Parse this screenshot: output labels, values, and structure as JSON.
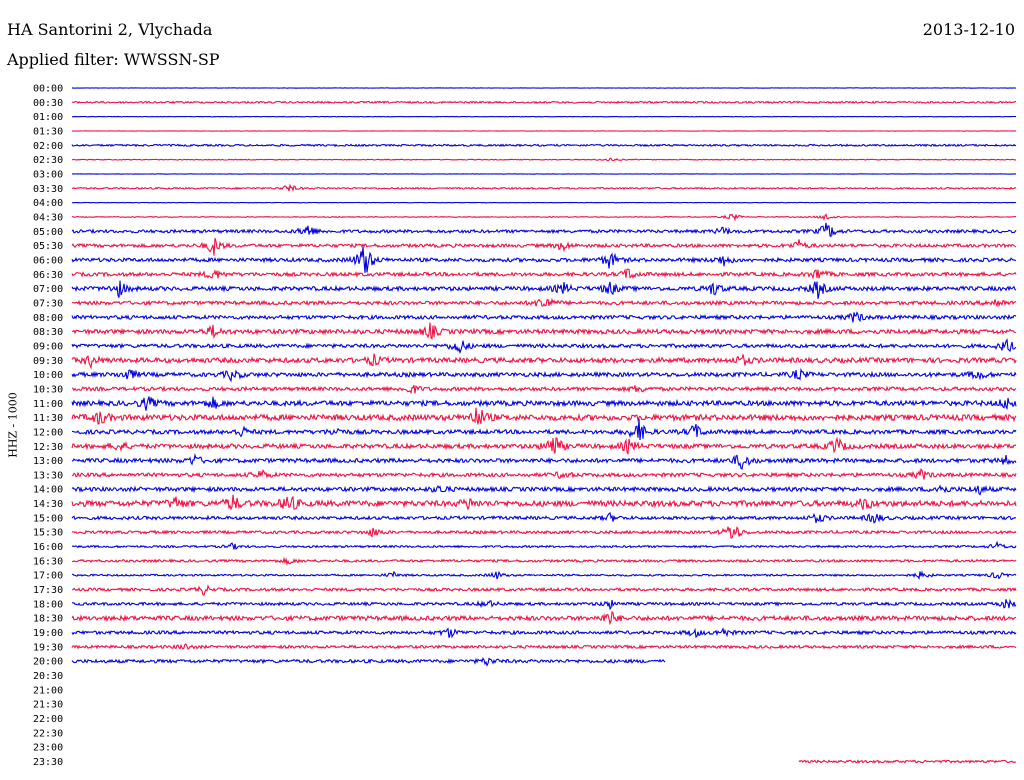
{
  "header": {
    "station": "HA Santorini 2, Vlychada",
    "date": "2013-12-10",
    "filter": "Applied filter: WWSSN-SP"
  },
  "colors": {
    "blue_trace": "#0000dd",
    "red_trace": "#ee1144",
    "background": "#ffffff"
  },
  "chart_data": {
    "type": "line",
    "title": "HA Santorini 2, Vlychada",
    "subtitle": "Applied filter: WWSSN-SP",
    "ylabel": "HHZ - 1000",
    "xlabel": "",
    "legend": "none",
    "grid": false,
    "rows": [
      {
        "time": "00:00",
        "color": "blue",
        "noise": 0.2,
        "end": 1.0,
        "events": []
      },
      {
        "time": "00:30",
        "color": "red",
        "noise": 0.9,
        "end": 1.0,
        "events": []
      },
      {
        "time": "01:00",
        "color": "blue",
        "noise": 0.2,
        "end": 1.0,
        "events": []
      },
      {
        "time": "01:30",
        "color": "red",
        "noise": 0.2,
        "end": 1.0,
        "events": []
      },
      {
        "time": "02:00",
        "color": "blue",
        "noise": 0.9,
        "end": 1.0,
        "events": []
      },
      {
        "time": "02:30",
        "color": "red",
        "noise": 0.4,
        "end": 1.0,
        "events": [
          {
            "t": 0.57,
            "a": 2
          }
        ]
      },
      {
        "time": "03:00",
        "color": "blue",
        "noise": 0.2,
        "end": 1.0,
        "events": []
      },
      {
        "time": "03:30",
        "color": "red",
        "noise": 0.8,
        "end": 1.0,
        "events": [
          {
            "t": 0.23,
            "a": 4
          }
        ]
      },
      {
        "time": "04:00",
        "color": "blue",
        "noise": 0.2,
        "end": 1.0,
        "events": []
      },
      {
        "time": "04:30",
        "color": "red",
        "noise": 0.4,
        "end": 1.0,
        "events": [
          {
            "t": 0.7,
            "a": 4
          },
          {
            "t": 0.8,
            "a": 4
          }
        ]
      },
      {
        "time": "05:00",
        "color": "blue",
        "noise": 1.5,
        "end": 1.0,
        "events": [
          {
            "t": 0.25,
            "a": 8
          },
          {
            "t": 0.69,
            "a": 4
          },
          {
            "t": 0.8,
            "a": 10
          }
        ]
      },
      {
        "time": "05:30",
        "color": "red",
        "noise": 1.6,
        "end": 1.0,
        "events": [
          {
            "t": 0.15,
            "a": 10
          },
          {
            "t": 0.52,
            "a": 5
          },
          {
            "t": 0.77,
            "a": 5
          }
        ]
      },
      {
        "time": "06:00",
        "color": "blue",
        "noise": 1.8,
        "end": 1.0,
        "events": [
          {
            "t": 0.31,
            "a": 20
          },
          {
            "t": 0.57,
            "a": 9
          },
          {
            "t": 0.69,
            "a": 6
          }
        ]
      },
      {
        "time": "06:30",
        "color": "red",
        "noise": 1.8,
        "end": 1.0,
        "events": [
          {
            "t": 0.15,
            "a": 6
          },
          {
            "t": 0.59,
            "a": 6
          },
          {
            "t": 0.79,
            "a": 6
          }
        ]
      },
      {
        "time": "07:00",
        "color": "blue",
        "noise": 2.0,
        "end": 1.0,
        "events": [
          {
            "t": 0.05,
            "a": 8
          },
          {
            "t": 0.52,
            "a": 6
          },
          {
            "t": 0.57,
            "a": 7
          },
          {
            "t": 0.68,
            "a": 7
          },
          {
            "t": 0.79,
            "a": 9
          }
        ]
      },
      {
        "time": "07:30",
        "color": "red",
        "noise": 1.8,
        "end": 1.0,
        "events": [
          {
            "t": 0.5,
            "a": 9
          },
          {
            "t": 0.98,
            "a": 5
          }
        ]
      },
      {
        "time": "08:00",
        "color": "blue",
        "noise": 1.8,
        "end": 1.0,
        "events": [
          {
            "t": 0.83,
            "a": 6
          }
        ]
      },
      {
        "time": "08:30",
        "color": "red",
        "noise": 2.2,
        "end": 1.0,
        "events": [
          {
            "t": 0.15,
            "a": 6
          },
          {
            "t": 0.38,
            "a": 8
          }
        ]
      },
      {
        "time": "09:00",
        "color": "blue",
        "noise": 1.8,
        "end": 1.0,
        "events": [
          {
            "t": 0.41,
            "a": 9
          },
          {
            "t": 0.99,
            "a": 7
          }
        ]
      },
      {
        "time": "09:30",
        "color": "red",
        "noise": 2.4,
        "end": 1.0,
        "events": [
          {
            "t": 0.02,
            "a": 6
          },
          {
            "t": 0.32,
            "a": 5
          },
          {
            "t": 0.71,
            "a": 5
          }
        ]
      },
      {
        "time": "10:00",
        "color": "blue",
        "noise": 2.0,
        "end": 1.0,
        "events": [
          {
            "t": 0.06,
            "a": 6
          },
          {
            "t": 0.17,
            "a": 6
          },
          {
            "t": 0.77,
            "a": 5
          },
          {
            "t": 0.96,
            "a": 5
          }
        ]
      },
      {
        "time": "10:30",
        "color": "red",
        "noise": 1.8,
        "end": 1.0,
        "events": [
          {
            "t": 0.36,
            "a": 5
          },
          {
            "t": 0.6,
            "a": 4
          }
        ]
      },
      {
        "time": "11:00",
        "color": "blue",
        "noise": 2.4,
        "end": 1.0,
        "events": [
          {
            "t": 0.08,
            "a": 7
          },
          {
            "t": 0.15,
            "a": 5
          },
          {
            "t": 0.99,
            "a": 6
          }
        ]
      },
      {
        "time": "11:30",
        "color": "red",
        "noise": 2.8,
        "end": 1.0,
        "events": [
          {
            "t": 0.03,
            "a": 7
          },
          {
            "t": 0.43,
            "a": 12
          }
        ]
      },
      {
        "time": "12:00",
        "color": "blue",
        "noise": 2.0,
        "end": 1.0,
        "events": [
          {
            "t": 0.18,
            "a": 5
          },
          {
            "t": 0.28,
            "a": 4
          },
          {
            "t": 0.6,
            "a": 13
          },
          {
            "t": 0.66,
            "a": 8
          }
        ]
      },
      {
        "time": "12:30",
        "color": "red",
        "noise": 2.2,
        "end": 1.0,
        "events": [
          {
            "t": 0.05,
            "a": 5
          },
          {
            "t": 0.51,
            "a": 14
          },
          {
            "t": 0.59,
            "a": 7
          },
          {
            "t": 0.81,
            "a": 9
          }
        ]
      },
      {
        "time": "13:00",
        "color": "blue",
        "noise": 2.0,
        "end": 1.0,
        "events": [
          {
            "t": 0.13,
            "a": 5
          },
          {
            "t": 0.71,
            "a": 10
          },
          {
            "t": 0.99,
            "a": 4
          }
        ]
      },
      {
        "time": "13:30",
        "color": "red",
        "noise": 1.8,
        "end": 1.0,
        "events": [
          {
            "t": 0.2,
            "a": 5
          },
          {
            "t": 0.52,
            "a": 4
          },
          {
            "t": 0.9,
            "a": 5
          }
        ]
      },
      {
        "time": "14:00",
        "color": "blue",
        "noise": 2.0,
        "end": 1.0,
        "events": [
          {
            "t": 0.39,
            "a": 4
          },
          {
            "t": 0.92,
            "a": 5
          },
          {
            "t": 0.96,
            "a": 5
          }
        ]
      },
      {
        "time": "14:30",
        "color": "red",
        "noise": 2.8,
        "end": 1.0,
        "events": [
          {
            "t": 0.11,
            "a": 6
          },
          {
            "t": 0.17,
            "a": 8
          },
          {
            "t": 0.23,
            "a": 10
          },
          {
            "t": 0.42,
            "a": 5
          },
          {
            "t": 0.84,
            "a": 6
          }
        ]
      },
      {
        "time": "15:00",
        "color": "blue",
        "noise": 1.6,
        "end": 1.0,
        "events": [
          {
            "t": 0.57,
            "a": 4
          },
          {
            "t": 0.79,
            "a": 5
          },
          {
            "t": 0.85,
            "a": 6
          }
        ]
      },
      {
        "time": "15:30",
        "color": "red",
        "noise": 1.4,
        "end": 1.0,
        "events": [
          {
            "t": 0.32,
            "a": 5
          },
          {
            "t": 0.7,
            "a": 12
          }
        ]
      },
      {
        "time": "16:00",
        "color": "blue",
        "noise": 1.0,
        "end": 1.0,
        "events": [
          {
            "t": 0.17,
            "a": 3
          },
          {
            "t": 0.98,
            "a": 4
          }
        ]
      },
      {
        "time": "16:30",
        "color": "red",
        "noise": 1.2,
        "end": 1.0,
        "events": [
          {
            "t": 0.23,
            "a": 3
          }
        ]
      },
      {
        "time": "17:00",
        "color": "blue",
        "noise": 0.9,
        "end": 1.0,
        "events": [
          {
            "t": 0.34,
            "a": 3
          },
          {
            "t": 0.45,
            "a": 4
          },
          {
            "t": 0.9,
            "a": 4
          },
          {
            "t": 0.98,
            "a": 4
          }
        ]
      },
      {
        "time": "17:30",
        "color": "red",
        "noise": 1.4,
        "end": 1.0,
        "events": [
          {
            "t": 0.14,
            "a": 5
          }
        ]
      },
      {
        "time": "18:00",
        "color": "blue",
        "noise": 1.4,
        "end": 1.0,
        "events": [
          {
            "t": 0.44,
            "a": 4
          },
          {
            "t": 0.57,
            "a": 4
          },
          {
            "t": 0.99,
            "a": 5
          }
        ]
      },
      {
        "time": "18:30",
        "color": "red",
        "noise": 2.2,
        "end": 1.0,
        "events": [
          {
            "t": 0.57,
            "a": 7
          }
        ]
      },
      {
        "time": "19:00",
        "color": "blue",
        "noise": 1.6,
        "end": 1.0,
        "events": [
          {
            "t": 0.4,
            "a": 5
          },
          {
            "t": 0.66,
            "a": 4
          },
          {
            "t": 0.69,
            "a": 4
          }
        ]
      },
      {
        "time": "19:30",
        "color": "red",
        "noise": 1.4,
        "end": 1.0,
        "events": [
          {
            "t": 0.12,
            "a": 3
          }
        ]
      },
      {
        "time": "20:00",
        "color": "blue",
        "noise": 1.6,
        "end": 0.629,
        "events": [
          {
            "t": 0.44,
            "a": 4
          }
        ]
      },
      {
        "time": "20:30",
        "color": "red",
        "noise": 0,
        "end": 0,
        "events": []
      },
      {
        "time": "21:00",
        "color": "blue",
        "noise": 0,
        "end": 0,
        "events": []
      },
      {
        "time": "21:30",
        "color": "red",
        "noise": 0,
        "end": 0,
        "events": []
      },
      {
        "time": "22:00",
        "color": "blue",
        "noise": 0,
        "end": 0,
        "events": []
      },
      {
        "time": "22:30",
        "color": "red",
        "noise": 0,
        "end": 0,
        "events": []
      },
      {
        "time": "23:00",
        "color": "blue",
        "noise": 0,
        "end": 0,
        "events": []
      },
      {
        "time": "23:30",
        "color": "red",
        "noise": 1.2,
        "end": 1.0,
        "start": 0.77,
        "events": []
      }
    ]
  }
}
